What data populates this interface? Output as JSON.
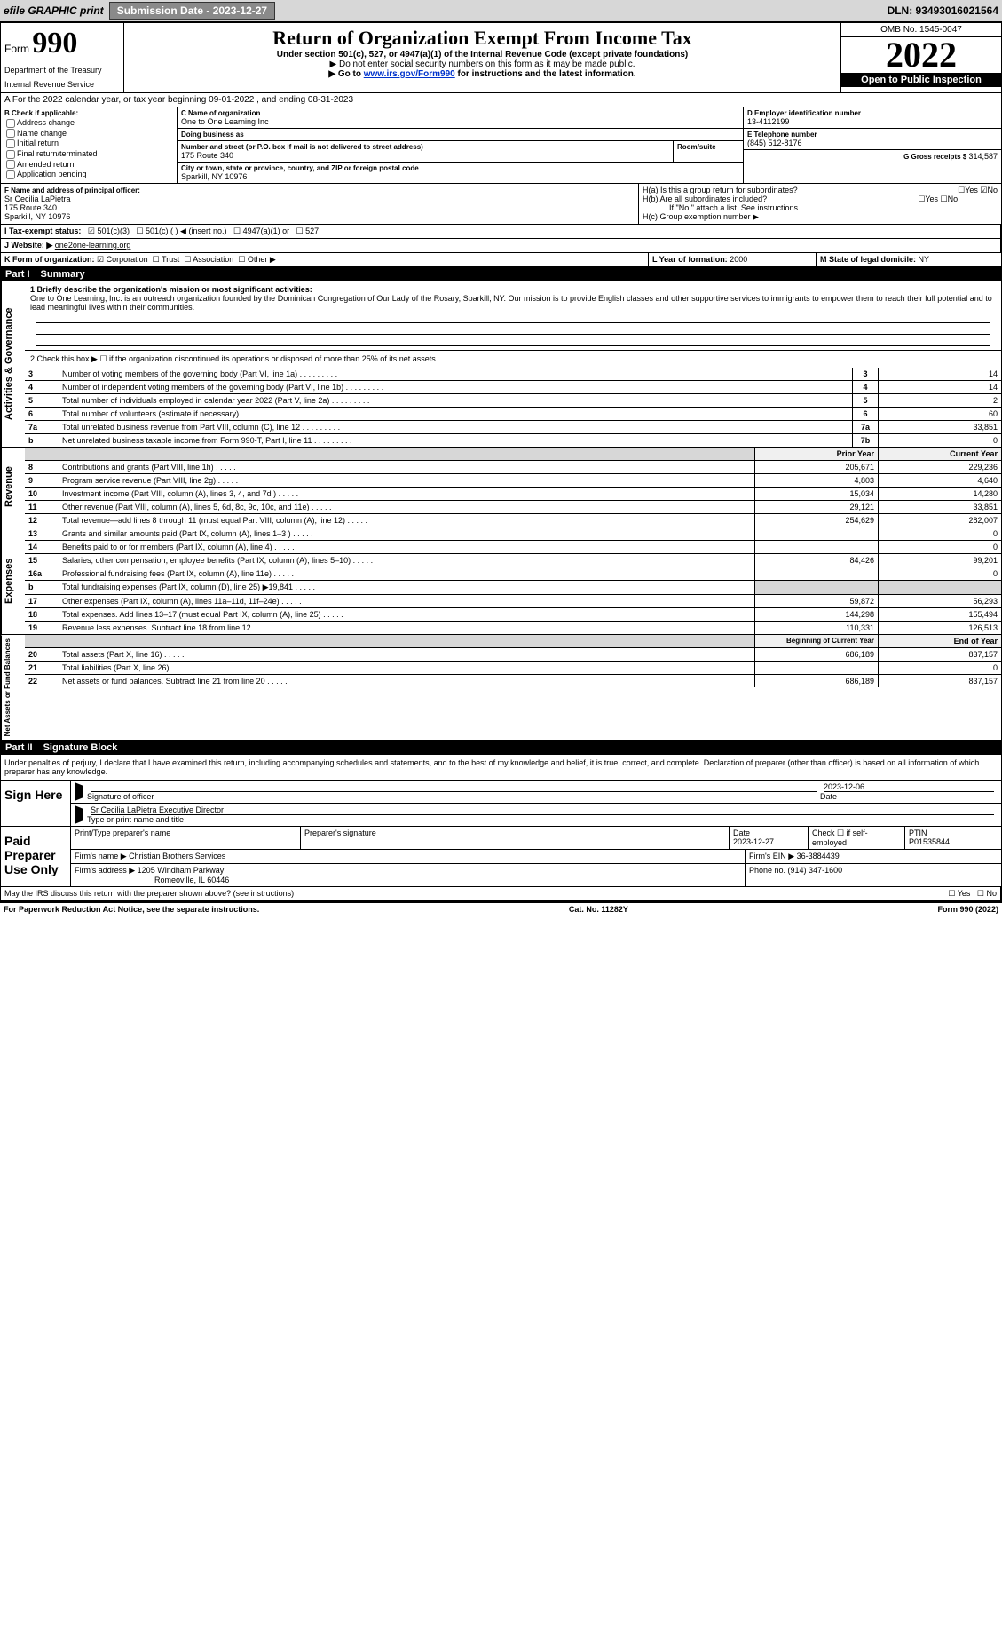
{
  "top": {
    "efile": "efile GRAPHIC print",
    "submission": "Submission Date - 2023-12-27",
    "dln": "DLN: 93493016021564"
  },
  "header": {
    "form_pref": "Form",
    "form_num": "990",
    "title": "Return of Organization Exempt From Income Tax",
    "under": "Under section 501(c), 527, or 4947(a)(1) of the Internal Revenue Code (except private foundations)",
    "ssn": "▶ Do not enter social security numbers on this form as it may be made public.",
    "goto_pref": "▶ Go to ",
    "goto_link": "www.irs.gov/Form990",
    "goto_suf": " for instructions and the latest information.",
    "dept": "Department of the Treasury",
    "irs": "Internal Revenue Service",
    "omb": "OMB No. 1545-0047",
    "year": "2022",
    "open": "Open to Public Inspection"
  },
  "rowA": "A For the 2022 calendar year, or tax year beginning 09-01-2022    , and ending 08-31-2023",
  "boxB": {
    "title": "B Check if applicable:",
    "items": [
      "Address change",
      "Name change",
      "Initial return",
      "Final return/terminated",
      "Amended return",
      "Application pending"
    ]
  },
  "boxC": {
    "nameLbl": "C Name of organization",
    "name": "One to One Learning Inc",
    "dbaLbl": "Doing business as",
    "addrLbl": "Number and street (or P.O. box if mail is not delivered to street address)",
    "roomLbl": "Room/suite",
    "addr": "175 Route 340",
    "cityLbl": "City or town, state or province, country, and ZIP or foreign postal code",
    "city": "Sparkill, NY  10976"
  },
  "boxD": {
    "einLbl": "D Employer identification number",
    "ein": "13-4112199",
    "phoneLbl": "E Telephone number",
    "phone": "(845) 512-8176",
    "grossLbl": "G Gross receipts $ ",
    "gross": "314,587"
  },
  "boxF": {
    "lbl": "F Name and address of principal officer:",
    "name": "Sr Cecilia LaPietra",
    "addr1": "175 Route 340",
    "addr2": "Sparkill, NY  10976"
  },
  "boxH": {
    "a": "H(a)  Is this a group return for subordinates?",
    "b": "H(b)  Are all subordinates included?",
    "bnote": "If \"No,\" attach a list. See instructions.",
    "c": "H(c)  Group exemption number ▶",
    "yes": "Yes",
    "no": "No"
  },
  "rowI": {
    "lbl": "I  Tax-exempt status:",
    "opts": [
      "501(c)(3)",
      "501(c) (   ) ◀ (insert no.)",
      "4947(a)(1) or",
      "527"
    ]
  },
  "rowJ": {
    "lbl": "J  Website: ▶",
    "val": "one2one-learning.org"
  },
  "rowK": {
    "lbl": "K Form of organization: ",
    "opts": [
      "Corporation",
      "Trust",
      "Association",
      "Other ▶"
    ]
  },
  "rowL": {
    "lbl": "L Year of formation: ",
    "val": "2000"
  },
  "rowM": {
    "lbl": "M State of legal domicile: ",
    "val": "NY"
  },
  "part1": {
    "tag": "Part I",
    "title": "Summary"
  },
  "summary": {
    "l1_lbl": "1  Briefly describe the organization's mission or most significant activities:",
    "l1_txt": "One to One Learning, Inc. is an outreach organization founded by the Dominican Congregation of Our Lady of the Rosary, Sparkill, NY. Our mission is to provide English classes and other supportive services to immigrants to empower them to reach their full potential and to lead meaningful lives within their communities.",
    "l2": "2   Check this box ▶ ☐  if the organization discontinued its operations or disposed of more than 25% of its net assets.",
    "lines_ag": [
      {
        "n": "3",
        "t": "Number of voting members of the governing body (Part VI, line 1a)",
        "box": "3",
        "v": "14"
      },
      {
        "n": "4",
        "t": "Number of independent voting members of the governing body (Part VI, line 1b)",
        "box": "4",
        "v": "14"
      },
      {
        "n": "5",
        "t": "Total number of individuals employed in calendar year 2022 (Part V, line 2a)",
        "box": "5",
        "v": "2"
      },
      {
        "n": "6",
        "t": "Total number of volunteers (estimate if necessary)",
        "box": "6",
        "v": "60"
      },
      {
        "n": "7a",
        "t": "Total unrelated business revenue from Part VIII, column (C), line 12",
        "box": "7a",
        "v": "33,851"
      },
      {
        "n": "b",
        "t": "Net unrelated business taxable income from Form 990-T, Part I, line 11",
        "box": "7b",
        "v": "0"
      }
    ],
    "prior_hdr": "Prior Year",
    "curr_hdr": "Current Year",
    "rev_lines": [
      {
        "n": "8",
        "t": "Contributions and grants (Part VIII, line 1h)",
        "p": "205,671",
        "c": "229,236"
      },
      {
        "n": "9",
        "t": "Program service revenue (Part VIII, line 2g)",
        "p": "4,803",
        "c": "4,640"
      },
      {
        "n": "10",
        "t": "Investment income (Part VIII, column (A), lines 3, 4, and 7d )",
        "p": "15,034",
        "c": "14,280"
      },
      {
        "n": "11",
        "t": "Other revenue (Part VIII, column (A), lines 5, 6d, 8c, 9c, 10c, and 11e)",
        "p": "29,121",
        "c": "33,851"
      },
      {
        "n": "12",
        "t": "Total revenue—add lines 8 through 11 (must equal Part VIII, column (A), line 12)",
        "p": "254,629",
        "c": "282,007"
      }
    ],
    "exp_lines": [
      {
        "n": "13",
        "t": "Grants and similar amounts paid (Part IX, column (A), lines 1–3 )",
        "p": "",
        "c": "0"
      },
      {
        "n": "14",
        "t": "Benefits paid to or for members (Part IX, column (A), line 4)",
        "p": "",
        "c": "0"
      },
      {
        "n": "15",
        "t": "Salaries, other compensation, employee benefits (Part IX, column (A), lines 5–10)",
        "p": "84,426",
        "c": "99,201"
      },
      {
        "n": "16a",
        "t": "Professional fundraising fees (Part IX, column (A), line 11e)",
        "p": "",
        "c": "0"
      },
      {
        "n": "b",
        "t": "Total fundraising expenses (Part IX, column (D), line 25) ▶19,841",
        "p": "GRAY",
        "c": "GRAY"
      },
      {
        "n": "17",
        "t": "Other expenses (Part IX, column (A), lines 11a–11d, 11f–24e)",
        "p": "59,872",
        "c": "56,293"
      },
      {
        "n": "18",
        "t": "Total expenses. Add lines 13–17 (must equal Part IX, column (A), line 25)",
        "p": "144,298",
        "c": "155,494"
      },
      {
        "n": "19",
        "t": "Revenue less expenses. Subtract line 18 from line 12",
        "p": "110,331",
        "c": "126,513"
      }
    ],
    "boy_hdr": "Beginning of Current Year",
    "eoy_hdr": "End of Year",
    "na_lines": [
      {
        "n": "20",
        "t": "Total assets (Part X, line 16)",
        "p": "686,189",
        "c": "837,157"
      },
      {
        "n": "21",
        "t": "Total liabilities (Part X, line 26)",
        "p": "",
        "c": "0"
      },
      {
        "n": "22",
        "t": "Net assets or fund balances. Subtract line 21 from line 20",
        "p": "686,189",
        "c": "837,157"
      }
    ],
    "side_ag": "Activities & Governance",
    "side_rev": "Revenue",
    "side_exp": "Expenses",
    "side_na": "Net Assets or Fund Balances"
  },
  "part2": {
    "tag": "Part II",
    "title": "Signature Block"
  },
  "sig": {
    "penalty": "Under penalties of perjury, I declare that I have examined this return, including accompanying schedules and statements, and to the best of my knowledge and belief, it is true, correct, and complete. Declaration of preparer (other than officer) is based on all information of which preparer has any knowledge.",
    "sign": "Sign Here",
    "sigoff": "Signature of officer",
    "date": "Date",
    "dateval": "2023-12-06",
    "name": "Sr Cecilia LaPietra  Executive Director",
    "nameline": "Type or print name and title",
    "paid": "Paid Preparer Use Only",
    "p_name_lbl": "Print/Type preparer's name",
    "p_sig_lbl": "Preparer's signature",
    "p_date_lbl": "Date",
    "p_date": "2023-12-27",
    "p_check": "Check ☐ if self-employed",
    "ptin_lbl": "PTIN",
    "ptin": "P01535844",
    "firm_lbl": "Firm's name    ▶",
    "firm": "Christian Brothers Services",
    "firm_ein_lbl": "Firm's EIN ▶",
    "firm_ein": "36-3884439",
    "firm_addr_lbl": "Firm's address ▶",
    "firm_addr1": "1205 Windham Parkway",
    "firm_addr2": "Romeoville, IL  60446",
    "phone_lbl": "Phone no. ",
    "phone": "(914) 347-1600",
    "may": "May the IRS discuss this return with the preparer shown above? (see instructions)",
    "yes": "Yes",
    "no": "No"
  },
  "footer": {
    "pra": "For Paperwork Reduction Act Notice, see the separate instructions.",
    "cat": "Cat. No. 11282Y",
    "form": "Form 990 (2022)"
  }
}
